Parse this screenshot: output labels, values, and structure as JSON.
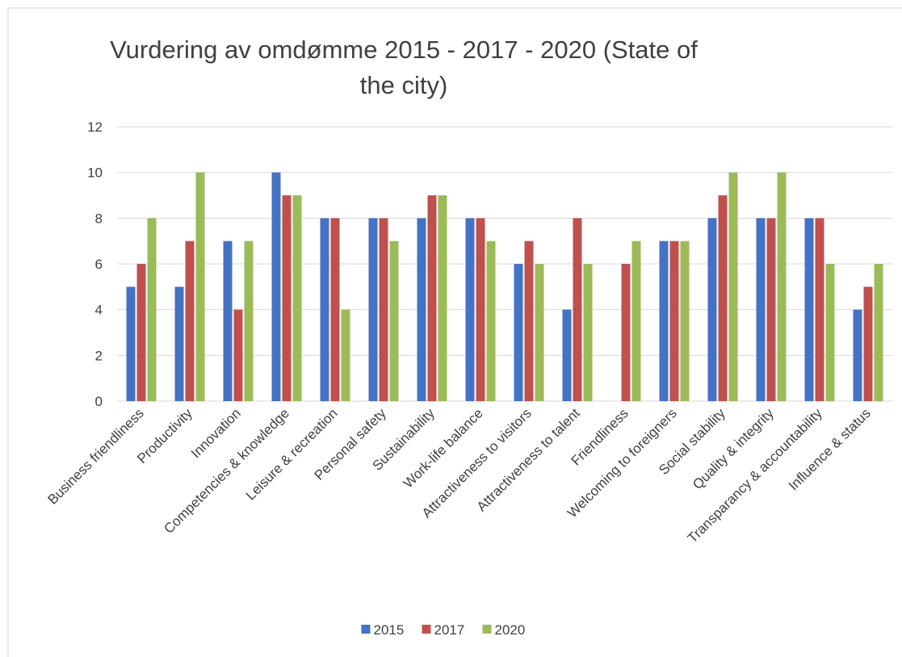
{
  "chart_data": {
    "type": "bar",
    "title": "Vurdering av omdømme 2015 - 2017 - 2020 (State of the city)",
    "categories": [
      "Business friendliness",
      "Productivity",
      "Innovation",
      "Competencies & knowledge",
      "Leisure & recreation",
      "Personal safety",
      "Sustainability",
      "Work-life balance",
      "Attractiveness to visitors",
      "Attractiveness to talent",
      "Friendliness",
      "Welcoming to foreigners",
      "Social stability",
      "Quality & integrity",
      "Transparancy & accountability",
      "Influence & status"
    ],
    "series": [
      {
        "name": "2015",
        "color": "#4472c4",
        "values": [
          5,
          5,
          7,
          10,
          8,
          8,
          8,
          8,
          6,
          4,
          null,
          7,
          8,
          8,
          8,
          4
        ]
      },
      {
        "name": "2017",
        "color": "#c0504d",
        "values": [
          6,
          7,
          4,
          9,
          8,
          8,
          9,
          8,
          7,
          8,
          6,
          7,
          9,
          8,
          8,
          5
        ]
      },
      {
        "name": "2020",
        "color": "#9bbb59",
        "values": [
          8,
          10,
          7,
          9,
          4,
          7,
          9,
          7,
          6,
          6,
          7,
          7,
          10,
          10,
          6,
          6
        ]
      }
    ],
    "ylim": [
      0,
      12
    ],
    "yticks": [
      0,
      2,
      4,
      6,
      8,
      10,
      12
    ],
    "grid": true,
    "legend": "bottom"
  }
}
